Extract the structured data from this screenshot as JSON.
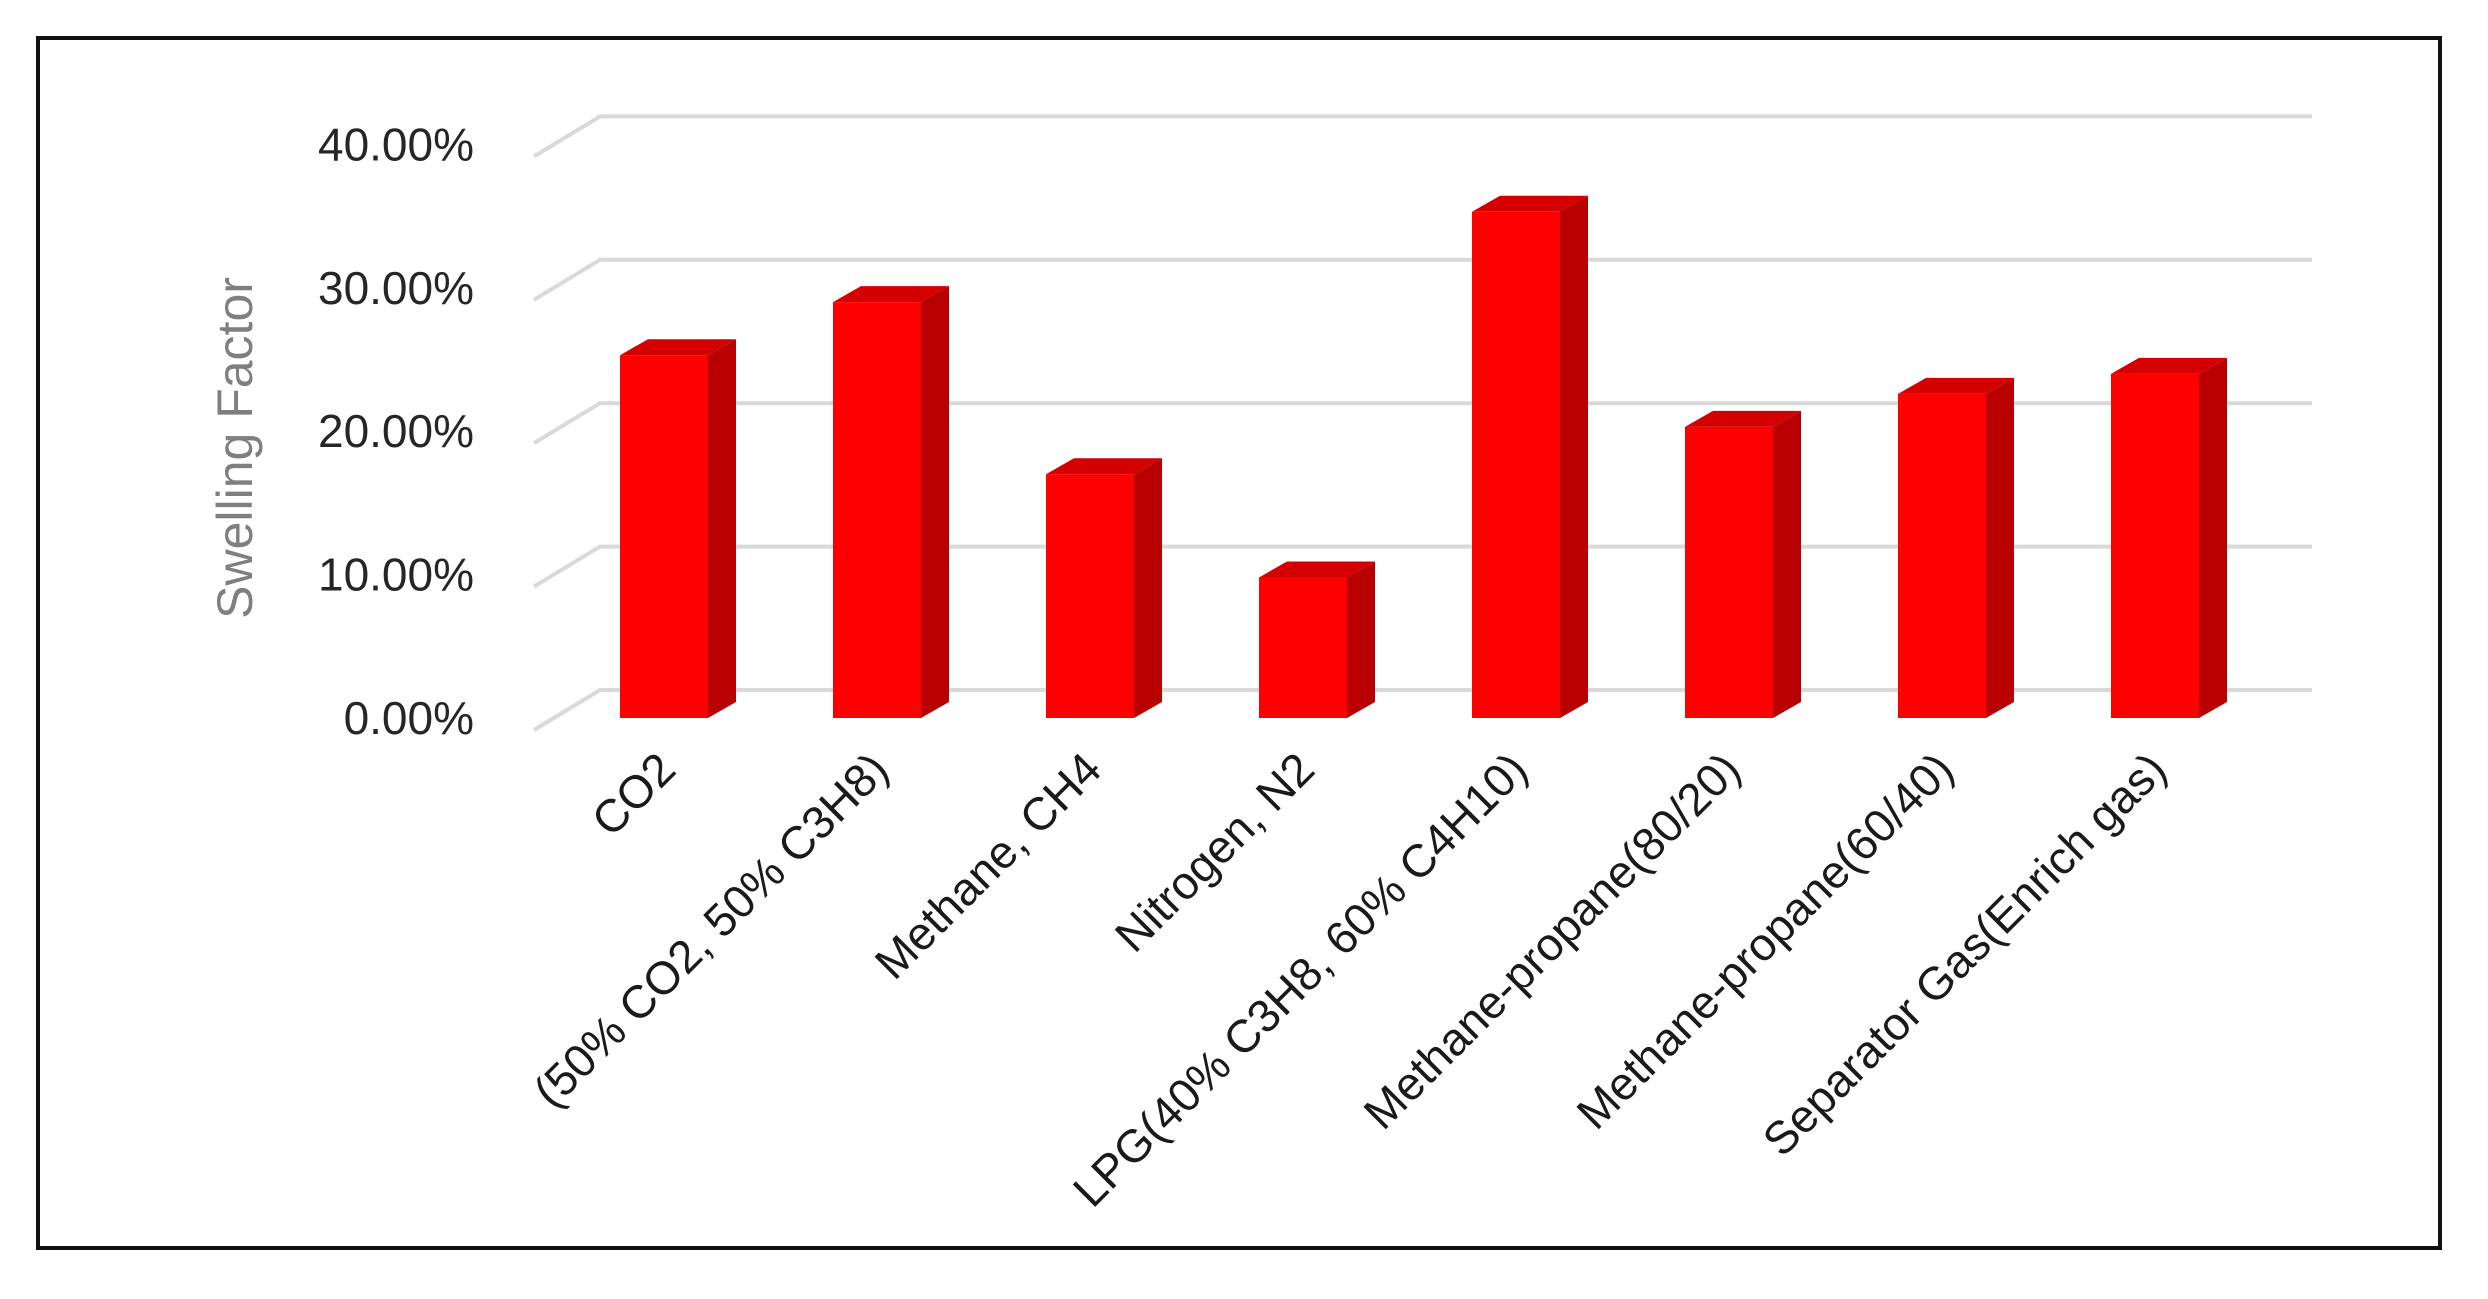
{
  "chart_data": {
    "type": "bar",
    "style": "3d-column",
    "title": "",
    "xlabel": "",
    "ylabel": "Swelling Factor",
    "ylim": [
      0,
      0.4
    ],
    "yticks": [
      "0.00%",
      "10.00%",
      "20.00%",
      "30.00%",
      "40.00%"
    ],
    "grid": true,
    "legend": "none",
    "categories": [
      "CO2",
      "(50% CO2, 50% C3H8)",
      "Methane, CH4",
      "Nitrogen, N2",
      "LPG(40% C3H8, 60% C4H10)",
      "Methane-propane(80/20)",
      "Methane-propane(60/40)",
      "Separator Gas(Enrich gas)"
    ],
    "series": [
      {
        "values": [
          0.253,
          0.29,
          0.17,
          0.098,
          0.353,
          0.203,
          0.226,
          0.24
        ]
      }
    ],
    "colors": {
      "bar_front": "#ff0000",
      "bar_side": "#b80000",
      "bar_top": "#d40000",
      "grid": "#d9d9d9"
    }
  }
}
